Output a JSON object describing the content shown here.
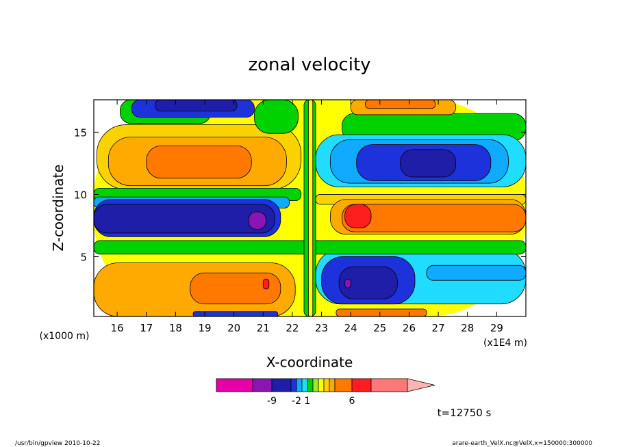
{
  "chart_data": {
    "type": "heatmap",
    "title": "zonal velocity",
    "xlabel": "X-coordinate",
    "ylabel": "Z-coordinate",
    "x_unit_note": "(x1E4 m)",
    "y_unit_note": "(x1000 m)",
    "xlim": [
      15.2,
      30.0
    ],
    "ylim": [
      0.2,
      17.6
    ],
    "x_ticks": [
      "16",
      "17",
      "18",
      "19",
      "20",
      "21",
      "22",
      "23",
      "24",
      "25",
      "26",
      "27",
      "28",
      "29"
    ],
    "y_ticks": [
      "5",
      "10",
      "15"
    ],
    "colorbar": {
      "colors": [
        "#e600a8",
        "#8a14b4",
        "#1e1ea8",
        "#1e32dc",
        "#10aaff",
        "#20ddff",
        "#00d200",
        "#a0e632",
        "#ffff00",
        "#fad200",
        "#ffaa00",
        "#ff7800",
        "#ff1e1e",
        "#ff7878",
        "#ffb4b4"
      ],
      "tick_labels": [
        "-9",
        "-2",
        "1",
        "6"
      ]
    },
    "regions": [
      {
        "level": "#ffff00",
        "x": [
          15.2,
          30.0
        ],
        "y": [
          0.2,
          17.6
        ]
      },
      {
        "level": "#fad200",
        "x": [
          15.3,
          22.3
        ],
        "y": [
          10.4,
          15.6
        ]
      },
      {
        "level": "#ffaa00",
        "x": [
          15.7,
          21.8
        ],
        "y": [
          10.7,
          14.6
        ]
      },
      {
        "level": "#ff7800",
        "x": [
          17.0,
          20.6
        ],
        "y": [
          11.3,
          13.9
        ]
      },
      {
        "level": "#00d200",
        "x": [
          16.1,
          19.2
        ],
        "y": [
          15.7,
          17.6
        ]
      },
      {
        "level": "#1e32dc",
        "x": [
          16.5,
          20.7
        ],
        "y": [
          16.2,
          17.6
        ]
      },
      {
        "level": "#1e1ea8",
        "x": [
          17.3,
          20.1
        ],
        "y": [
          16.7,
          17.6
        ]
      },
      {
        "level": "#00d200",
        "x": [
          20.7,
          22.2
        ],
        "y": [
          14.9,
          17.6
        ]
      },
      {
        "level": "#00d200",
        "x": [
          23.7,
          30.0
        ],
        "y": [
          14.3,
          16.5
        ]
      },
      {
        "level": "#ffaa00",
        "x": [
          24.0,
          27.6
        ],
        "y": [
          16.4,
          17.6
        ]
      },
      {
        "level": "#ff7800",
        "x": [
          24.5,
          26.9
        ],
        "y": [
          16.9,
          17.6
        ]
      },
      {
        "level": "#20ddff",
        "x": [
          22.8,
          30.0
        ],
        "y": [
          10.6,
          14.8
        ]
      },
      {
        "level": "#10aaff",
        "x": [
          23.3,
          29.4
        ],
        "y": [
          10.9,
          14.4
        ]
      },
      {
        "level": "#1e32dc",
        "x": [
          24.2,
          28.8
        ],
        "y": [
          11.1,
          14.0
        ]
      },
      {
        "level": "#1e1ea8",
        "x": [
          25.7,
          27.6
        ],
        "y": [
          11.4,
          13.6
        ]
      },
      {
        "level": "#00d200",
        "x": [
          15.2,
          22.3
        ],
        "y": [
          9.5,
          10.5
        ]
      },
      {
        "level": "#10aaff",
        "x": [
          15.2,
          21.9
        ],
        "y": [
          8.9,
          9.8
        ]
      },
      {
        "level": "#1e32dc",
        "x": [
          15.2,
          21.6
        ],
        "y": [
          6.6,
          9.6
        ]
      },
      {
        "level": "#1e1ea8",
        "x": [
          15.2,
          21.4
        ],
        "y": [
          6.9,
          9.2
        ]
      },
      {
        "level": "#8a14b4",
        "x": [
          20.5,
          21.1
        ],
        "y": [
          7.2,
          8.6
        ]
      },
      {
        "level": "#fad200",
        "x": [
          22.8,
          30.0
        ],
        "y": [
          9.2,
          10.0
        ]
      },
      {
        "level": "#ffaa00",
        "x": [
          23.3,
          30.0
        ],
        "y": [
          6.8,
          9.6
        ]
      },
      {
        "level": "#ff7800",
        "x": [
          23.7,
          30.0
        ],
        "y": [
          7.0,
          9.2
        ]
      },
      {
        "level": "#ff1e1e",
        "x": [
          23.8,
          24.7
        ],
        "y": [
          7.3,
          9.2
        ]
      },
      {
        "level": "#ffaa00",
        "x": [
          15.2,
          22.1
        ],
        "y": [
          0.2,
          4.5
        ]
      },
      {
        "level": "#ff7800",
        "x": [
          18.5,
          21.6
        ],
        "y": [
          1.2,
          3.7
        ]
      },
      {
        "level": "#ff1e1e",
        "x": [
          21.0,
          21.2
        ],
        "y": [
          2.4,
          3.2
        ]
      },
      {
        "level": "#20ddff",
        "x": [
          22.8,
          30.0
        ],
        "y": [
          1.2,
          5.6
        ]
      },
      {
        "level": "#1e32dc",
        "x": [
          23.0,
          26.2
        ],
        "y": [
          1.2,
          5.0
        ]
      },
      {
        "level": "#1e1ea8",
        "x": [
          23.6,
          25.6
        ],
        "y": [
          1.6,
          4.2
        ]
      },
      {
        "level": "#8a14b4",
        "x": [
          23.8,
          24.0
        ],
        "y": [
          2.5,
          3.2
        ]
      },
      {
        "level": "#10aaff",
        "x": [
          26.6,
          30.0
        ],
        "y": [
          3.1,
          4.3
        ]
      },
      {
        "level": "#00d200",
        "x": [
          15.2,
          30.0
        ],
        "y": [
          5.2,
          6.3
        ]
      },
      {
        "level": "#00d200",
        "x": [
          22.4,
          22.8
        ],
        "y": [
          0.2,
          17.6
        ]
      },
      {
        "level": "#ffff00",
        "x": [
          22.55,
          22.7
        ],
        "y": [
          0.2,
          17.6
        ]
      },
      {
        "level": "#1e32dc",
        "x": [
          18.6,
          21.5
        ],
        "y": [
          0.2,
          0.6
        ]
      },
      {
        "level": "#ff7800",
        "x": [
          23.5,
          26.6
        ],
        "y": [
          0.2,
          0.8
        ]
      }
    ]
  },
  "annotations": {
    "time": "t=12750 s",
    "footer_left": "/usr/bin/gpview  2010-10-22",
    "footer_right": "arare-earth_VelX.nc@VelX,x=150000:300000"
  }
}
